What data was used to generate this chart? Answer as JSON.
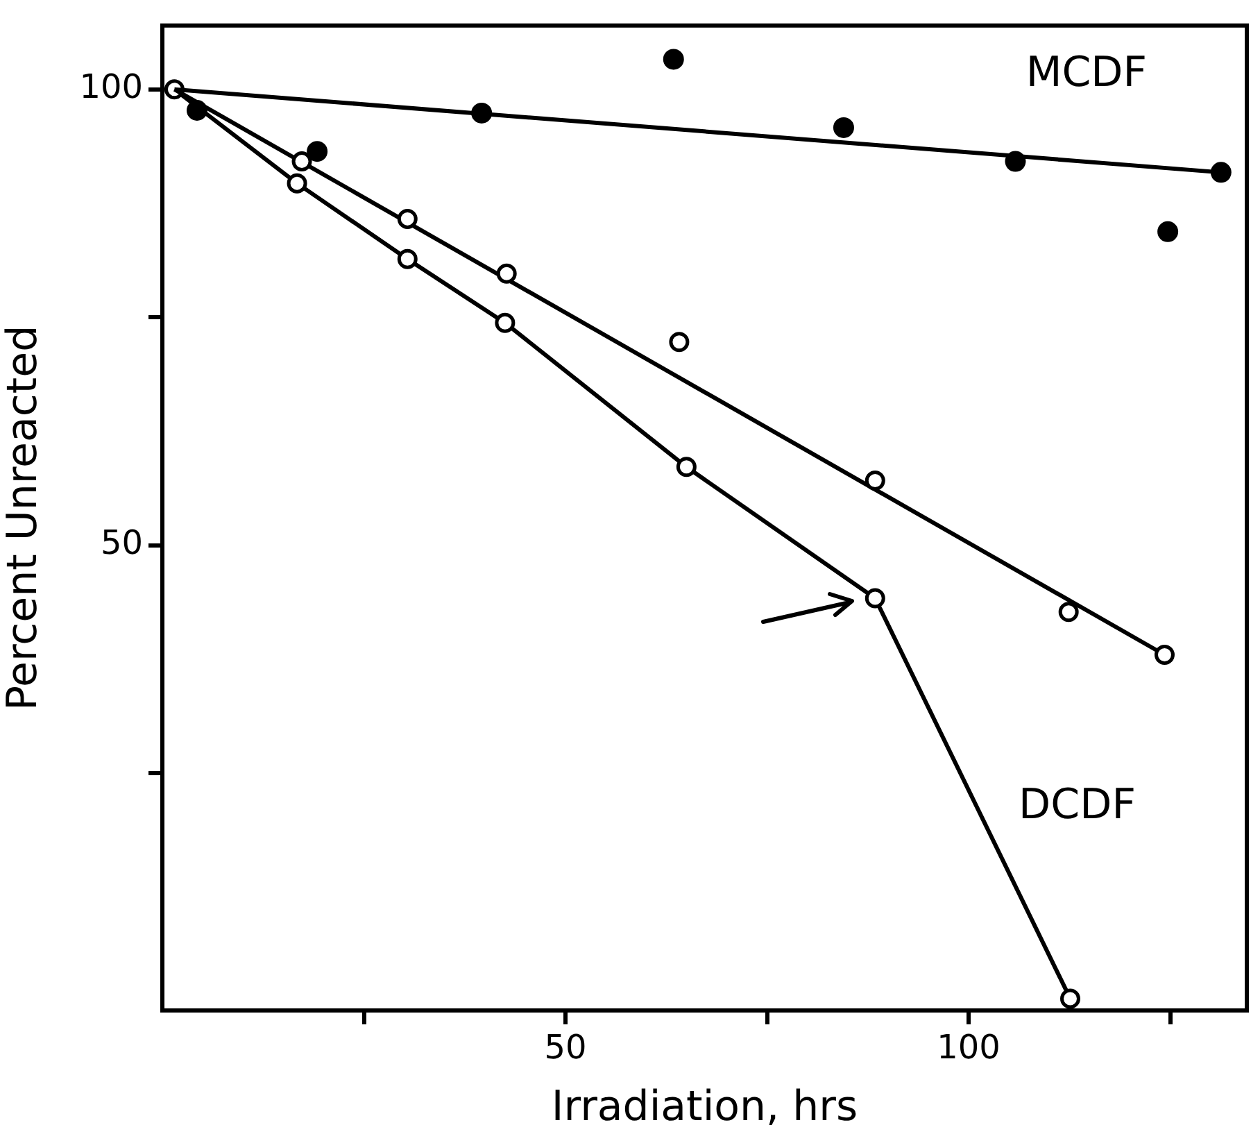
{
  "chart_data": {
    "type": "scatter",
    "xlabel": "Irradiation, hrs",
    "ylabel": "Percent Unreacted",
    "xlim": [
      0,
      134.5
    ],
    "xticks": [
      {
        "value": 25,
        "label": null
      },
      50,
      {
        "value": 75,
        "label": null
      },
      100,
      {
        "value": 125,
        "label": null
      }
    ],
    "ylim": [
      -1,
      107
    ],
    "yticks": [
      {
        "value": 25,
        "label": null
      },
      50,
      {
        "value": 75,
        "label": null
      },
      100
    ],
    "grid": false,
    "legend": false,
    "line_style": "solid",
    "series": [
      {
        "name": "MCDF",
        "color": "#000000",
        "marker": "circle",
        "x": [
          4.3,
          19.2,
          39.6,
          63.4,
          84.5,
          105.8,
          124.7,
          131.3
        ],
        "values": [
          97.7,
          93.2,
          97.4,
          103.3,
          95.8,
          92.1,
          84.4,
          90.9
        ]
      },
      {
        "type": "line",
        "color": "#000000",
        "x": [
          1.5,
          131.3
        ],
        "values": [
          100,
          90.9
        ]
      },
      {
        "color": "#000000",
        "marker": "circle",
        "x": [
          17.3,
          30.4,
          42.7,
          64.1,
          88.4,
          112.4,
          124.3
        ],
        "values": [
          92.1,
          85.8,
          79.8,
          72.3,
          57.1,
          42.7,
          38.0
        ]
      },
      {
        "type": "line",
        "color": "#000000",
        "x": [
          1.5,
          124.3
        ],
        "values": [
          100,
          38.0
        ]
      },
      {
        "name": "DCDF",
        "type": "line",
        "color": "#000000",
        "marker": "circle",
        "x": [
          1.5,
          16.7,
          30.4,
          42.5,
          65,
          88.4,
          112.6
        ],
        "values": [
          100,
          89.7,
          81.4,
          74.4,
          58.6,
          44.2,
          0.3
        ]
      }
    ]
  }
}
